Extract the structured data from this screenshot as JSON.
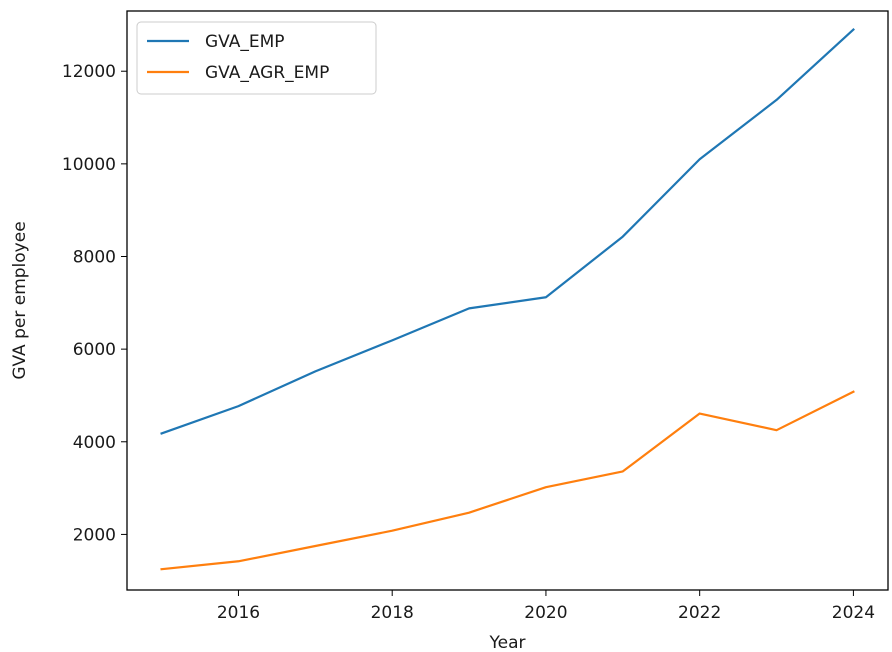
{
  "chart_data": {
    "type": "line",
    "title": "",
    "xlabel": "Year",
    "ylabel": "GVA per employee",
    "x": [
      2015,
      2016,
      2017,
      2018,
      2019,
      2020,
      2021,
      2022,
      2023,
      2024
    ],
    "xticks": [
      2016,
      2018,
      2020,
      2022,
      2024
    ],
    "yticks": [
      2000,
      4000,
      6000,
      8000,
      10000,
      12000
    ],
    "xlim": [
      2014.55,
      2024.45
    ],
    "ylim": [
      800,
      13300
    ],
    "grid": false,
    "legend_position": "top-left",
    "series": [
      {
        "name": "GVA_EMP",
        "color": "#1f77b4",
        "values": [
          4180,
          4770,
          5520,
          6190,
          6880,
          7120,
          8430,
          10100,
          11380,
          12900
        ]
      },
      {
        "name": "GVA_AGR_EMP",
        "color": "#ff7f0e",
        "values": [
          1250,
          1420,
          1750,
          2080,
          2470,
          3020,
          3360,
          4610,
          4250,
          5080
        ]
      }
    ]
  }
}
